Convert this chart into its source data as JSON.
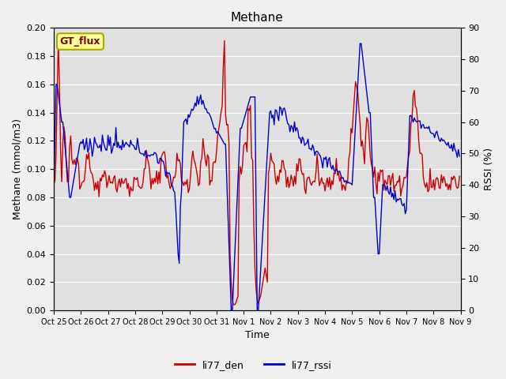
{
  "title": "Methane",
  "ylabel_left": "Methane (mmol/m3)",
  "ylabel_right": "RSSI (%)",
  "xlabel": "Time",
  "ylim_left": [
    0.0,
    0.2
  ],
  "ylim_right": [
    0,
    90
  ],
  "yticks_left": [
    0.0,
    0.02,
    0.04,
    0.06,
    0.08,
    0.1,
    0.12,
    0.14,
    0.16,
    0.18,
    0.2
  ],
  "yticks_right": [
    0,
    10,
    20,
    30,
    40,
    50,
    60,
    70,
    80,
    90
  ],
  "color_den": "#cc0000",
  "color_rssi": "#0000cc",
  "fig_bg_color": "#f0f0f0",
  "plot_bg_color": "#e0e0e0",
  "legend_label_den": "li77_den",
  "legend_label_rssi": "li77_rssi",
  "annotation_text": "GT_flux",
  "annotation_bg": "#ffff99",
  "annotation_border": "#aaaa00",
  "annotation_text_color": "#880000",
  "xtick_labels": [
    "Oct 25",
    "Oct 26",
    "Oct 27",
    "Oct 28",
    "Oct 29",
    "Oct 30",
    "Oct 31",
    "Nov 1",
    "Nov 2",
    "Nov 3",
    "Nov 4",
    "Nov 5",
    "Nov 6",
    "Nov 7",
    "Nov 8",
    "Nov 9"
  ],
  "grid_color": "#ffffff",
  "linewidth": 1.0
}
